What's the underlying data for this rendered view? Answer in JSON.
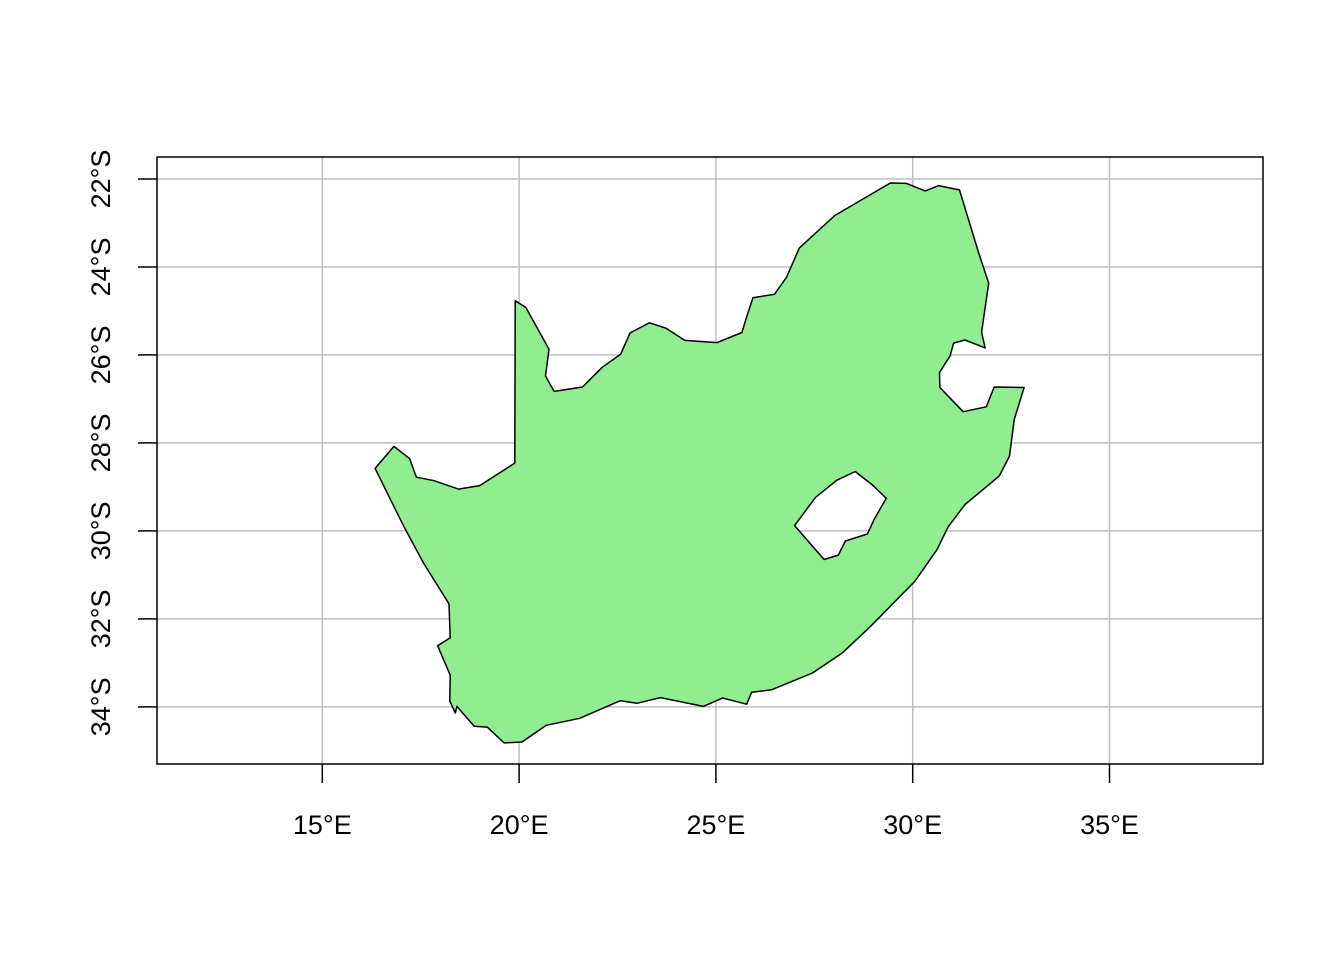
{
  "map": {
    "xlim": [
      10.8,
      38.9
    ],
    "ylim": [
      -35.3,
      -21.5
    ],
    "grid": true,
    "colors": {
      "land_fill": "#90ee90",
      "outline": "#000000",
      "grid": "#bebebe",
      "frame": "#000000"
    },
    "x_ticks": [
      {
        "value": 15,
        "label": "15°E"
      },
      {
        "value": 20,
        "label": "20°E"
      },
      {
        "value": 25,
        "label": "25°E"
      },
      {
        "value": 30,
        "label": "30°E"
      },
      {
        "value": 35,
        "label": "35°E"
      }
    ],
    "y_ticks": [
      {
        "value": -22,
        "label": "22°S"
      },
      {
        "value": -24,
        "label": "24°S"
      },
      {
        "value": -26,
        "label": "26°S"
      },
      {
        "value": -28,
        "label": "28°S"
      },
      {
        "value": -30,
        "label": "30°S"
      },
      {
        "value": -32,
        "label": "32°S"
      },
      {
        "value": -34,
        "label": "34°S"
      }
    ],
    "country_outline": [
      [
        19.9,
        -24.77
      ],
      [
        20.17,
        -24.92
      ],
      [
        20.76,
        -25.87
      ],
      [
        20.67,
        -26.48
      ],
      [
        20.89,
        -26.83
      ],
      [
        21.61,
        -26.73
      ],
      [
        22.11,
        -26.28
      ],
      [
        22.58,
        -25.98
      ],
      [
        22.82,
        -25.5
      ],
      [
        23.31,
        -25.27
      ],
      [
        23.73,
        -25.39
      ],
      [
        24.21,
        -25.67
      ],
      [
        25.03,
        -25.72
      ],
      [
        25.66,
        -25.49
      ],
      [
        25.77,
        -25.17
      ],
      [
        25.94,
        -24.7
      ],
      [
        26.49,
        -24.62
      ],
      [
        26.79,
        -24.24
      ],
      [
        27.12,
        -23.57
      ],
      [
        28.02,
        -22.83
      ],
      [
        29.43,
        -22.09
      ],
      [
        29.84,
        -22.1
      ],
      [
        30.32,
        -22.27
      ],
      [
        30.66,
        -22.15
      ],
      [
        31.19,
        -22.25
      ],
      [
        31.67,
        -23.66
      ],
      [
        31.93,
        -24.37
      ],
      [
        31.75,
        -25.48
      ],
      [
        31.84,
        -25.84
      ],
      [
        31.33,
        -25.66
      ],
      [
        31.04,
        -25.73
      ],
      [
        30.95,
        -26.02
      ],
      [
        30.68,
        -26.4
      ],
      [
        30.69,
        -26.74
      ],
      [
        31.28,
        -27.29
      ],
      [
        31.87,
        -27.18
      ],
      [
        32.07,
        -26.73
      ],
      [
        32.83,
        -26.74
      ],
      [
        32.58,
        -27.47
      ],
      [
        32.46,
        -28.3
      ],
      [
        32.2,
        -28.75
      ],
      [
        31.52,
        -29.26
      ],
      [
        31.33,
        -29.4
      ],
      [
        30.9,
        -29.91
      ],
      [
        30.62,
        -30.42
      ],
      [
        30.06,
        -31.14
      ],
      [
        28.93,
        -32.17
      ],
      [
        28.22,
        -32.77
      ],
      [
        27.46,
        -33.23
      ],
      [
        26.42,
        -33.61
      ],
      [
        25.91,
        -33.67
      ],
      [
        25.78,
        -33.94
      ],
      [
        25.17,
        -33.8
      ],
      [
        24.68,
        -33.99
      ],
      [
        23.59,
        -33.79
      ],
      [
        22.99,
        -33.92
      ],
      [
        22.57,
        -33.86
      ],
      [
        21.54,
        -34.26
      ],
      [
        20.69,
        -34.42
      ],
      [
        20.07,
        -34.8
      ],
      [
        19.62,
        -34.82
      ],
      [
        19.19,
        -34.46
      ],
      [
        18.86,
        -34.44
      ],
      [
        18.42,
        -33.99
      ],
      [
        18.38,
        -34.14
      ],
      [
        18.24,
        -33.87
      ],
      [
        18.25,
        -33.28
      ],
      [
        17.93,
        -32.61
      ],
      [
        18.25,
        -32.43
      ],
      [
        18.22,
        -31.66
      ],
      [
        17.57,
        -30.73
      ],
      [
        17.06,
        -29.88
      ],
      [
        17.06,
        -29.88
      ],
      [
        16.34,
        -28.58
      ],
      [
        16.82,
        -28.08
      ],
      [
        17.22,
        -28.36
      ],
      [
        17.39,
        -28.78
      ],
      [
        17.84,
        -28.86
      ],
      [
        18.46,
        -29.05
      ],
      [
        19.0,
        -28.97
      ],
      [
        19.89,
        -28.46
      ],
      [
        19.9,
        -24.77
      ]
    ],
    "lesotho_hole": [
      [
        28.98,
        -28.96
      ],
      [
        29.33,
        -29.26
      ],
      [
        29.02,
        -29.74
      ],
      [
        28.85,
        -30.07
      ],
      [
        28.29,
        -30.23
      ],
      [
        28.11,
        -30.55
      ],
      [
        27.75,
        -30.65
      ],
      [
        27.0,
        -29.88
      ],
      [
        27.53,
        -29.24
      ],
      [
        28.07,
        -28.85
      ],
      [
        28.54,
        -28.65
      ],
      [
        28.98,
        -28.96
      ]
    ]
  }
}
